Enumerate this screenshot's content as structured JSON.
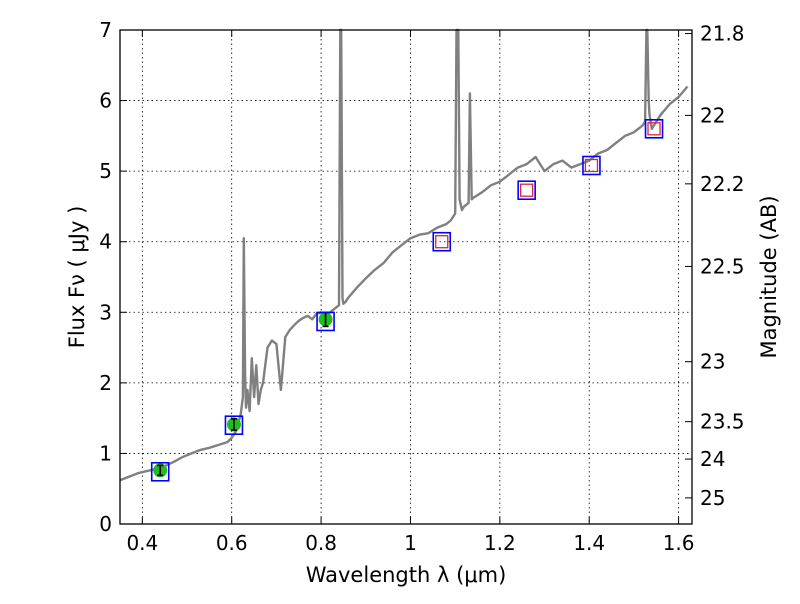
{
  "chart_data": {
    "type": "line",
    "title": "",
    "xlabel": "Wavelength  λ (μm)",
    "ylabel": "Flux  Fν  ( μJy )",
    "ylabel2": "Magnitude (AB)",
    "xlim": [
      0.35,
      1.63
    ],
    "ylim": [
      0,
      7
    ],
    "x_ticks": [
      0.4,
      0.6,
      0.8,
      1.0,
      1.2,
      1.4,
      1.6
    ],
    "x_tick_labels": [
      "0.4",
      "0.6",
      "0.8",
      "1",
      "1.2",
      "1.4",
      "1.6"
    ],
    "y_ticks": [
      0,
      1,
      2,
      3,
      4,
      5,
      6,
      7
    ],
    "y_tick_labels": [
      "0",
      "1",
      "2",
      "3",
      "4",
      "5",
      "6",
      "7"
    ],
    "magnitude_ticks": [
      {
        "label": "21.8",
        "value": 6.95
      },
      {
        "label": "22",
        "value": 5.79
      },
      {
        "label": "22.2",
        "value": 4.82
      },
      {
        "label": "22.5",
        "value": 3.65
      },
      {
        "label": "23",
        "value": 2.3
      },
      {
        "label": "23.5",
        "value": 1.45
      },
      {
        "label": "24",
        "value": 0.92
      },
      {
        "label": "25",
        "value": 0.37
      }
    ],
    "grid": true,
    "colors": {
      "spectrum": "#808080",
      "model_box": "#0000ff",
      "observed_fill": "#22bb22",
      "upper_limit": "#dd2244",
      "errorbar": "#000000"
    },
    "series": [
      {
        "kind": "spectrum",
        "x": [
          0.35,
          0.37,
          0.39,
          0.41,
          0.43,
          0.45,
          0.47,
          0.49,
          0.51,
          0.53,
          0.55,
          0.57,
          0.59,
          0.6,
          0.61,
          0.62,
          0.625,
          0.627,
          0.63,
          0.632,
          0.635,
          0.64,
          0.645,
          0.65,
          0.655,
          0.66,
          0.665,
          0.67,
          0.68,
          0.69,
          0.7,
          0.71,
          0.72,
          0.73,
          0.74,
          0.75,
          0.76,
          0.77,
          0.78,
          0.79,
          0.8,
          0.81,
          0.82,
          0.83,
          0.84,
          0.843,
          0.845,
          0.848,
          0.85,
          0.855,
          0.86,
          0.88,
          0.9,
          0.92,
          0.94,
          0.96,
          0.98,
          1.0,
          1.02,
          1.04,
          1.06,
          1.08,
          1.09,
          1.1,
          1.103,
          1.107,
          1.11,
          1.115,
          1.12,
          1.13,
          1.133,
          1.137,
          1.14,
          1.16,
          1.18,
          1.2,
          1.22,
          1.24,
          1.26,
          1.28,
          1.3,
          1.32,
          1.34,
          1.36,
          1.38,
          1.4,
          1.42,
          1.44,
          1.46,
          1.48,
          1.5,
          1.52,
          1.525,
          1.528,
          1.53,
          1.533,
          1.535,
          1.54,
          1.56,
          1.58,
          1.6,
          1.62
        ],
        "y": [
          0.62,
          0.67,
          0.72,
          0.75,
          0.78,
          0.82,
          0.88,
          0.95,
          1.0,
          1.05,
          1.08,
          1.12,
          1.16,
          1.22,
          1.32,
          1.55,
          1.8,
          4.05,
          2.1,
          1.65,
          1.9,
          1.6,
          2.35,
          1.8,
          2.25,
          1.7,
          1.9,
          2.0,
          2.5,
          2.6,
          2.55,
          1.9,
          2.65,
          2.75,
          2.82,
          2.88,
          2.92,
          2.95,
          2.9,
          2.98,
          3.0,
          2.95,
          3.0,
          3.05,
          3.1,
          7.0,
          7.0,
          3.2,
          3.12,
          3.15,
          3.2,
          3.35,
          3.48,
          3.6,
          3.7,
          3.85,
          3.95,
          4.05,
          4.1,
          4.12,
          4.2,
          4.25,
          4.3,
          4.4,
          7.0,
          7.0,
          4.6,
          4.45,
          4.5,
          4.55,
          6.1,
          4.6,
          4.62,
          4.7,
          4.8,
          4.85,
          4.95,
          5.05,
          5.1,
          5.2,
          5.0,
          5.1,
          5.15,
          5.05,
          5.1,
          5.15,
          5.25,
          5.3,
          5.4,
          5.5,
          5.55,
          5.65,
          5.7,
          7.0,
          7.0,
          6.0,
          5.8,
          5.6,
          5.8,
          5.95,
          6.05,
          6.2
        ]
      },
      {
        "kind": "model_photometry",
        "x": [
          0.44,
          0.605,
          0.81,
          1.07,
          1.26,
          1.405,
          1.545
        ],
        "y": [
          0.74,
          1.4,
          2.87,
          4.0,
          4.73,
          5.08,
          5.6
        ]
      },
      {
        "kind": "observed",
        "x": [
          0.44,
          0.605,
          0.81
        ],
        "y": [
          0.76,
          1.41,
          2.9
        ],
        "err": [
          0.07,
          0.08,
          0.1
        ]
      },
      {
        "kind": "upper_limits",
        "x": [
          1.07,
          1.26,
          1.405,
          1.545
        ],
        "y": [
          4.0,
          4.73,
          5.08,
          5.6
        ]
      }
    ]
  }
}
